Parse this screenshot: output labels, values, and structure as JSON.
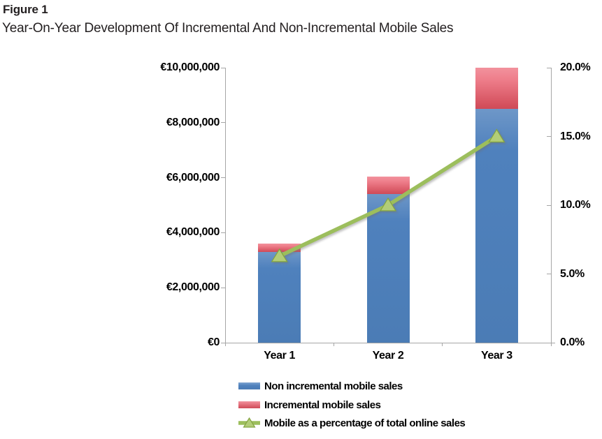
{
  "figure_label": "Figure 1",
  "title": "Year-On-Year Development Of Incremental And Non-Incremental Mobile Sales",
  "colors": {
    "bar_blue": "#4F81BD",
    "bar_red": "#E2616E",
    "line_green": "#9CBE5C",
    "marker_fill": "#B2CD77",
    "marker_border": "#84A441",
    "axis_gray": "#A6A6A6",
    "text": "#000000"
  },
  "chart_data": {
    "type": "stacked-bar-with-line",
    "categories": [
      "Year 1",
      "Year 2",
      "Year 3"
    ],
    "series": [
      {
        "name": "Non incremental mobile sales",
        "type": "bar",
        "stack": true,
        "axis": "left",
        "color": "#4F81BD",
        "values": [
          3300000,
          5400000,
          8500000
        ]
      },
      {
        "name": "Incremental mobile sales",
        "type": "bar",
        "stack": true,
        "axis": "left",
        "color": "#E2616E",
        "values": [
          300000,
          650000,
          1500000
        ]
      },
      {
        "name": "Mobile as a percentage of total online sales",
        "type": "line",
        "axis": "right",
        "color": "#9CBE5C",
        "values": [
          6.3,
          10.0,
          15.0
        ]
      }
    ],
    "left_axis": {
      "min": 0,
      "max": 10000000,
      "step": 2000000,
      "tick_labels": [
        "€0",
        "€2,000,000",
        "€4,000,000",
        "€6,000,000",
        "€8,000,000",
        "€10,000,000"
      ]
    },
    "right_axis": {
      "min": 0,
      "max": 20,
      "step": 5,
      "tick_labels": [
        "0.0%",
        "5.0%",
        "10.0%",
        "15.0%",
        "20.0%"
      ]
    },
    "grid": false,
    "legend_position": "bottom-left"
  }
}
